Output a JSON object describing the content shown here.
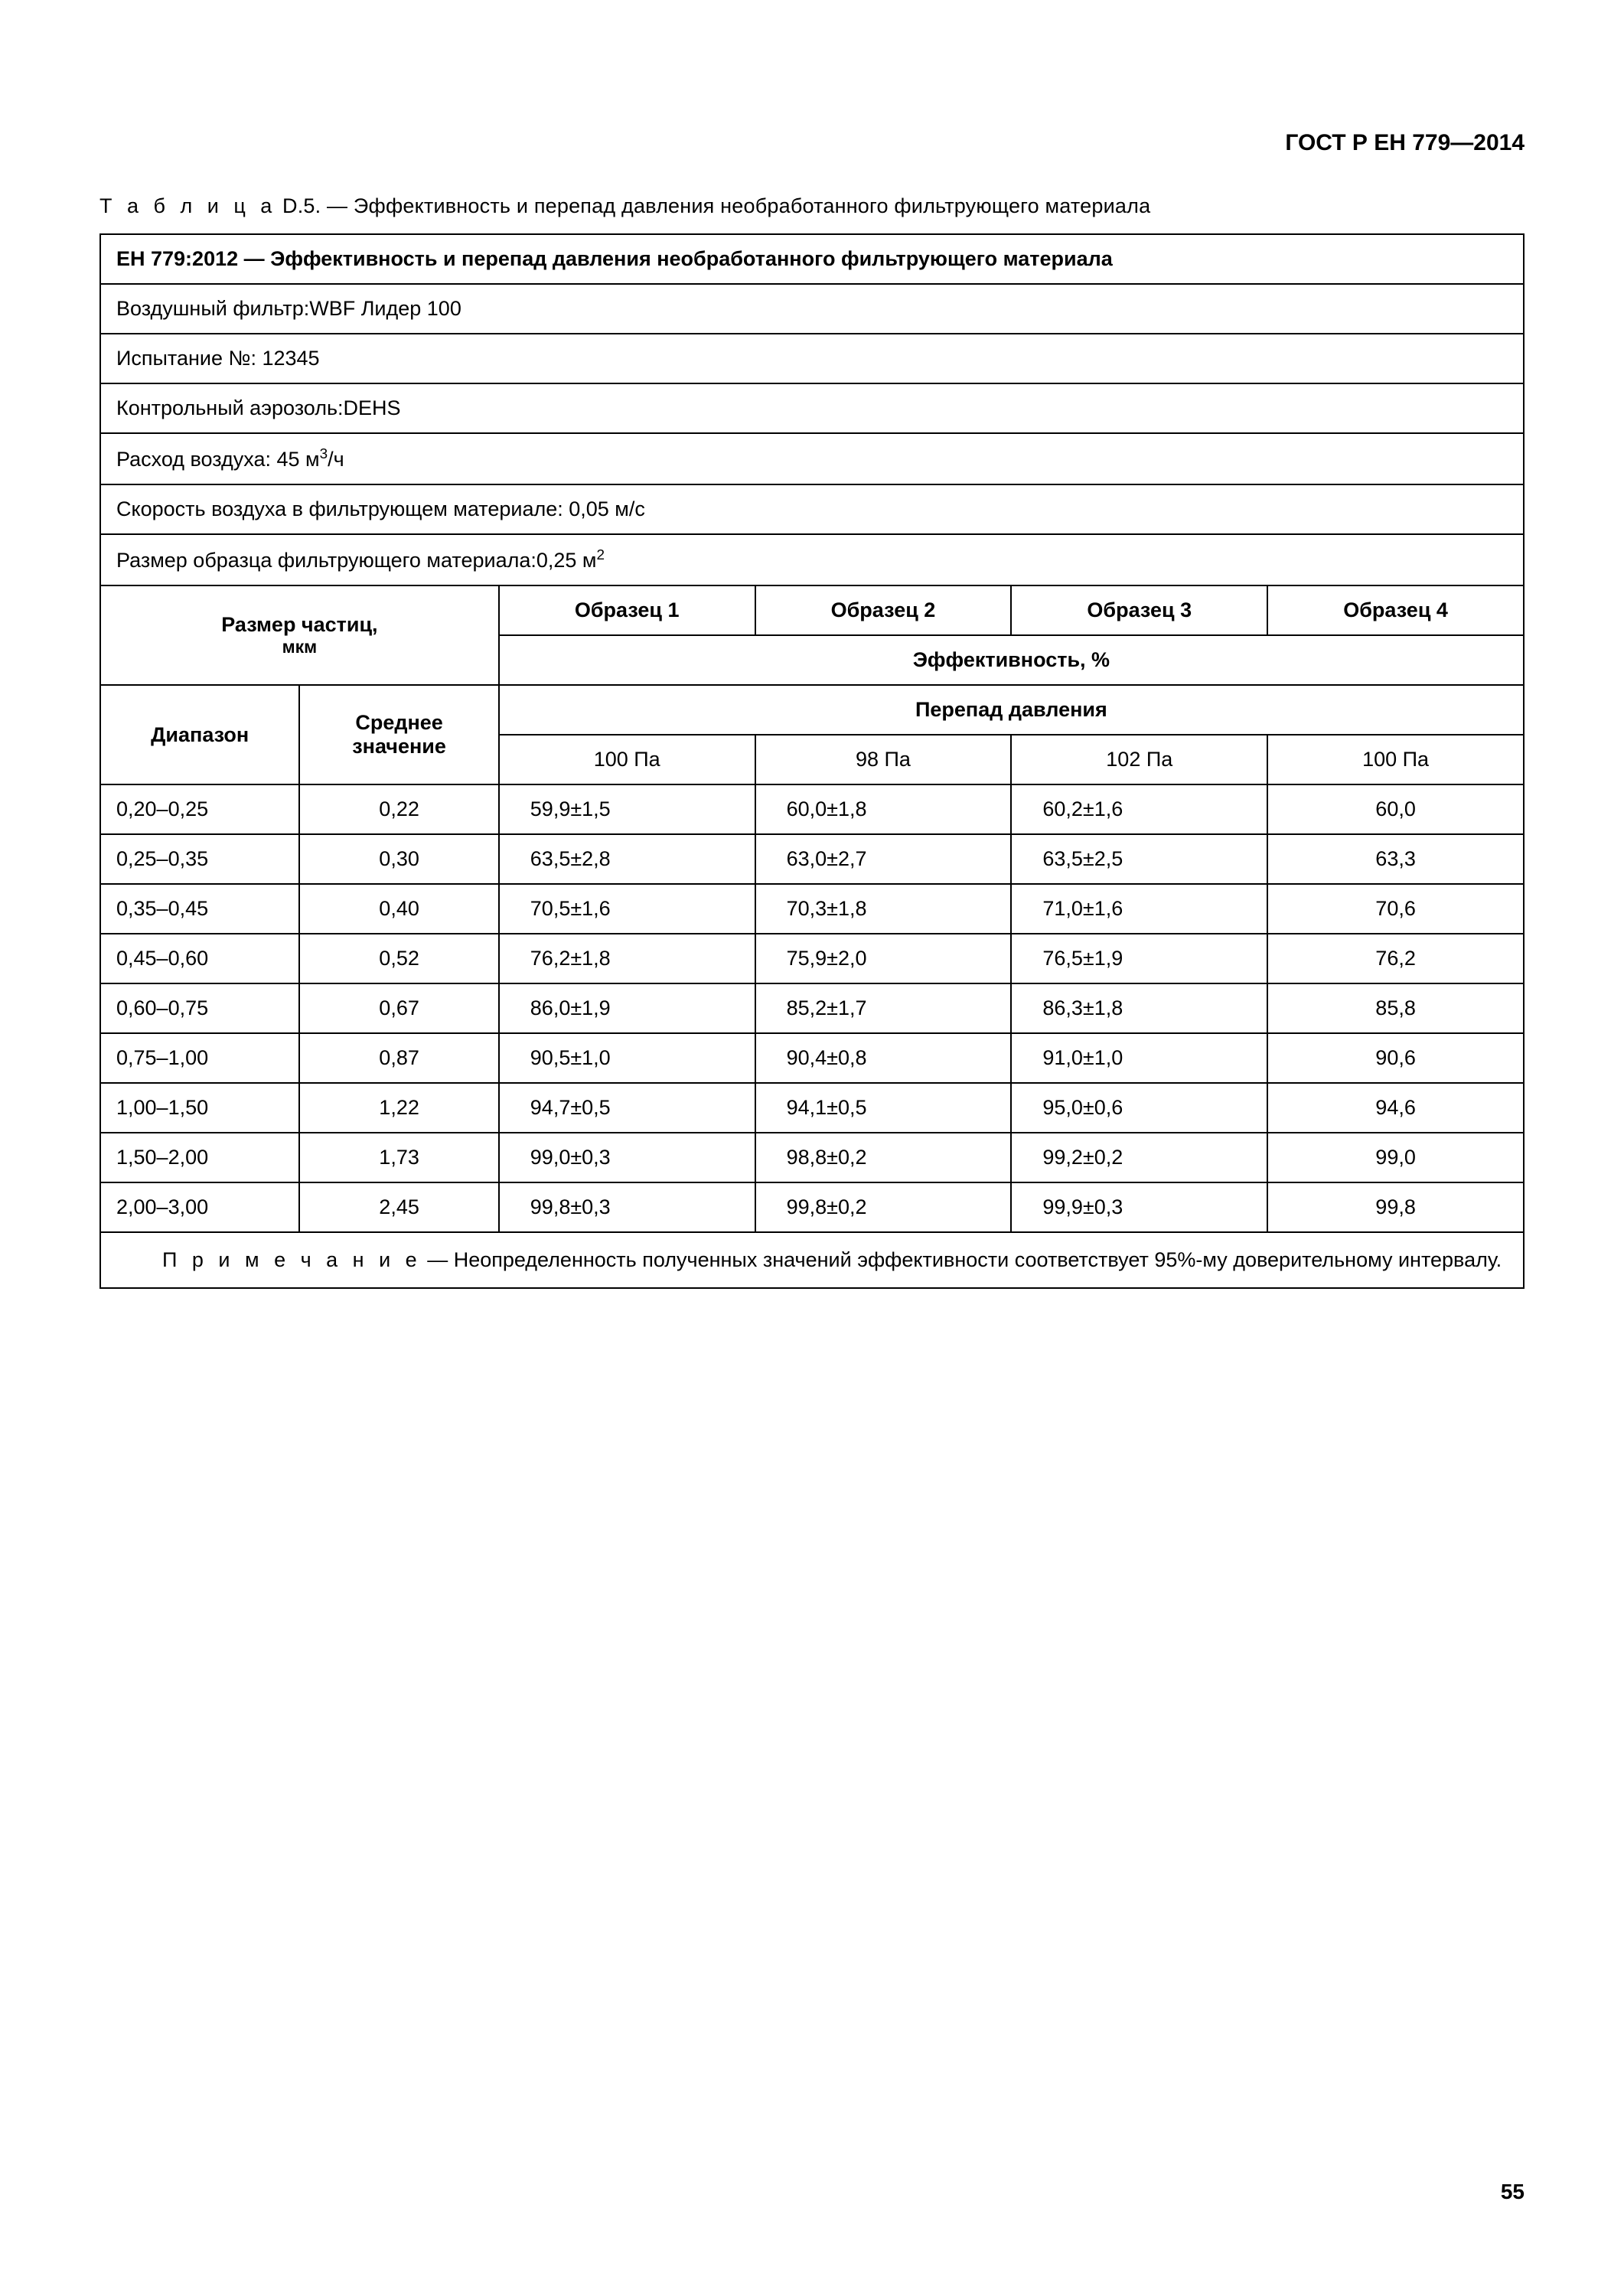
{
  "doc_header": "ГОСТ Р ЕН 779—2014",
  "table_caption_prefix": "Т а б л и ц а",
  "table_caption_rest": "  D.5. — Эффективность и перепад давления необработанного фильтрующего материала",
  "meta": {
    "title": "ЕН 779:2012 — Эффективность и перепад давления необработанного фильтрующего материала",
    "air_filter": "Воздушный фильтр:WBF Лидер 100",
    "test_no": "Испытание №: 12345",
    "aerosol": "Контрольный аэрозоль:DEHS",
    "air_flow_prefix": "Расход воздуха: 45 м",
    "air_flow_sup": "3",
    "air_flow_suffix": "/ч",
    "air_speed": "Скорость воздуха в фильтрующем материале: 0,05 м/с",
    "sample_size_prefix": "Размер образца фильтрующего материала:0,25 м",
    "sample_size_sup": "2"
  },
  "headers": {
    "particle_size_line1": "Размер частиц,",
    "particle_size_line2": "мкм",
    "sample1": "Образец 1",
    "sample2": "Образец 2",
    "sample3": "Образец 3",
    "sample4": "Образец 4",
    "efficiency": "Эффективность, %",
    "range": "Диапазон",
    "mean": "Среднее значение",
    "pressure_drop": "Перепад давления",
    "p1": "100 Па",
    "p2": "98 Па",
    "p3": "102 Па",
    "p4": "100 Па"
  },
  "rows": [
    {
      "range": "0,20–0,25",
      "mean": "0,22",
      "s1": "59,9±1,5",
      "s2": "60,0±1,8",
      "s3": "60,2±1,6",
      "s4": "60,0"
    },
    {
      "range": "0,25–0,35",
      "mean": "0,30",
      "s1": "63,5±2,8",
      "s2": "63,0±2,7",
      "s3": "63,5±2,5",
      "s4": "63,3"
    },
    {
      "range": "0,35–0,45",
      "mean": "0,40",
      "s1": "70,5±1,6",
      "s2": "70,3±1,8",
      "s3": "71,0±1,6",
      "s4": "70,6"
    },
    {
      "range": "0,45–0,60",
      "mean": "0,52",
      "s1": "76,2±1,8",
      "s2": "75,9±2,0",
      "s3": "76,5±1,9",
      "s4": "76,2"
    },
    {
      "range": "0,60–0,75",
      "mean": "0,67",
      "s1": "86,0±1,9",
      "s2": "85,2±1,7",
      "s3": "86,3±1,8",
      "s4": "85,8"
    },
    {
      "range": "0,75–1,00",
      "mean": "0,87",
      "s1": "90,5±1,0",
      "s2": "90,4±0,8",
      "s3": "91,0±1,0",
      "s4": "90,6"
    },
    {
      "range": "1,00–1,50",
      "mean": "1,22",
      "s1": "94,7±0,5",
      "s2": "94,1±0,5",
      "s3": "95,0±0,6",
      "s4": "94,6"
    },
    {
      "range": "1,50–2,00",
      "mean": "1,73",
      "s1": "99,0±0,3",
      "s2": "98,8±0,2",
      "s3": "99,2±0,2",
      "s4": "99,0"
    },
    {
      "range": "2,00–3,00",
      "mean": "2,45",
      "s1": "99,8±0,3",
      "s2": "99,8±0,2",
      "s3": "99,9±0,3",
      "s4": "99,8"
    }
  ],
  "note_prefix": "П р и м е ч а н и е",
  "note_rest": "  — Неопределенность полученных значений эффективности соответствует 95%-му доверительному интервалу.",
  "page_number": "55",
  "style": {
    "border_color": "#000000",
    "text_color": "#000000",
    "background": "#ffffff",
    "font_size_body": 27,
    "font_size_header": 30,
    "font_size_sub": 23
  }
}
